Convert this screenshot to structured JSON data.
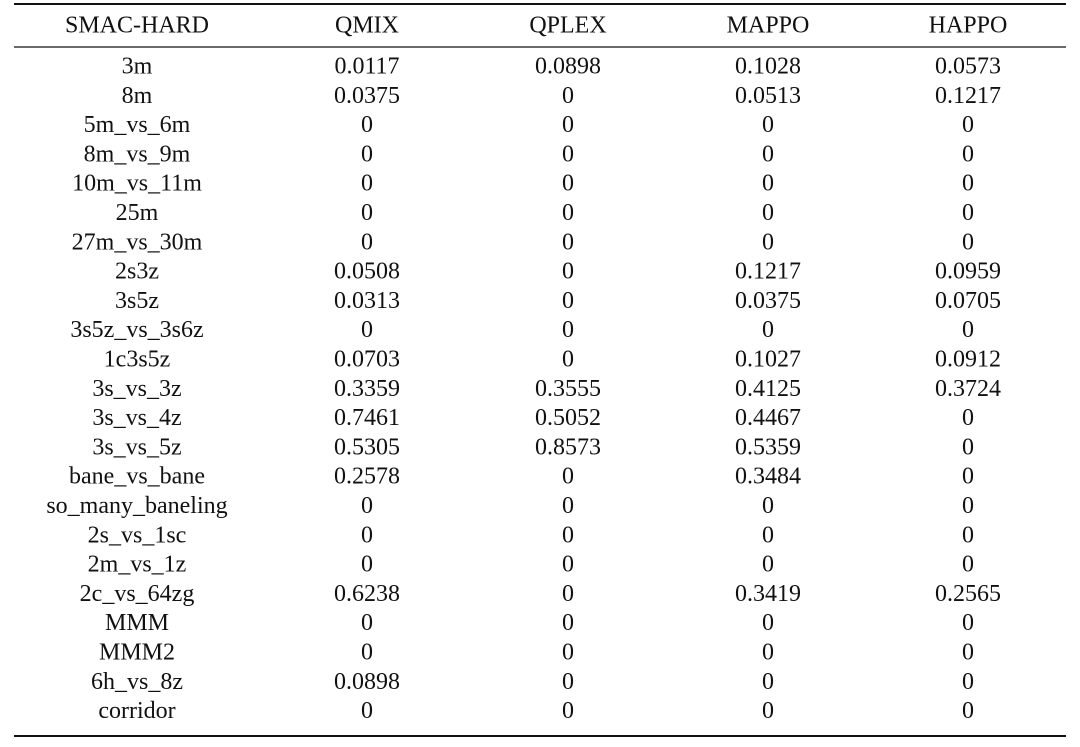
{
  "table": {
    "header": [
      "SMAC-HARD",
      "QMIX",
      "QPLEX",
      "MAPPO",
      "HAPPO"
    ],
    "rows": [
      [
        "3m",
        "0.0117",
        "0.0898",
        "0.1028",
        "0.0573"
      ],
      [
        "8m",
        "0.0375",
        "0",
        "0.0513",
        "0.1217"
      ],
      [
        "5m_vs_6m",
        "0",
        "0",
        "0",
        "0"
      ],
      [
        "8m_vs_9m",
        "0",
        "0",
        "0",
        "0"
      ],
      [
        "10m_vs_11m",
        "0",
        "0",
        "0",
        "0"
      ],
      [
        "25m",
        "0",
        "0",
        "0",
        "0"
      ],
      [
        "27m_vs_30m",
        "0",
        "0",
        "0",
        "0"
      ],
      [
        "2s3z",
        "0.0508",
        "0",
        "0.1217",
        "0.0959"
      ],
      [
        "3s5z",
        "0.0313",
        "0",
        "0.0375",
        "0.0705"
      ],
      [
        "3s5z_vs_3s6z",
        "0",
        "0",
        "0",
        "0"
      ],
      [
        "1c3s5z",
        "0.0703",
        "0",
        "0.1027",
        "0.0912"
      ],
      [
        "3s_vs_3z",
        "0.3359",
        "0.3555",
        "0.4125",
        "0.3724"
      ],
      [
        "3s_vs_4z",
        "0.7461",
        "0.5052",
        "0.4467",
        "0"
      ],
      [
        "3s_vs_5z",
        "0.5305",
        "0.8573",
        "0.5359",
        "0"
      ],
      [
        "bane_vs_bane",
        "0.2578",
        "0",
        "0.3484",
        "0"
      ],
      [
        "so_many_baneling",
        "0",
        "0",
        "0",
        "0"
      ],
      [
        "2s_vs_1sc",
        "0",
        "0",
        "0",
        "0"
      ],
      [
        "2m_vs_1z",
        "0",
        "0",
        "0",
        "0"
      ],
      [
        "2c_vs_64zg",
        "0.6238",
        "0",
        "0.3419",
        "0.2565"
      ],
      [
        "MMM",
        "0",
        "0",
        "0",
        "0"
      ],
      [
        "MMM2",
        "0",
        "0",
        "0",
        "0"
      ],
      [
        "6h_vs_8z",
        "0.0898",
        "0",
        "0",
        "0"
      ],
      [
        "corridor",
        "0",
        "0",
        "0",
        "0"
      ]
    ]
  }
}
